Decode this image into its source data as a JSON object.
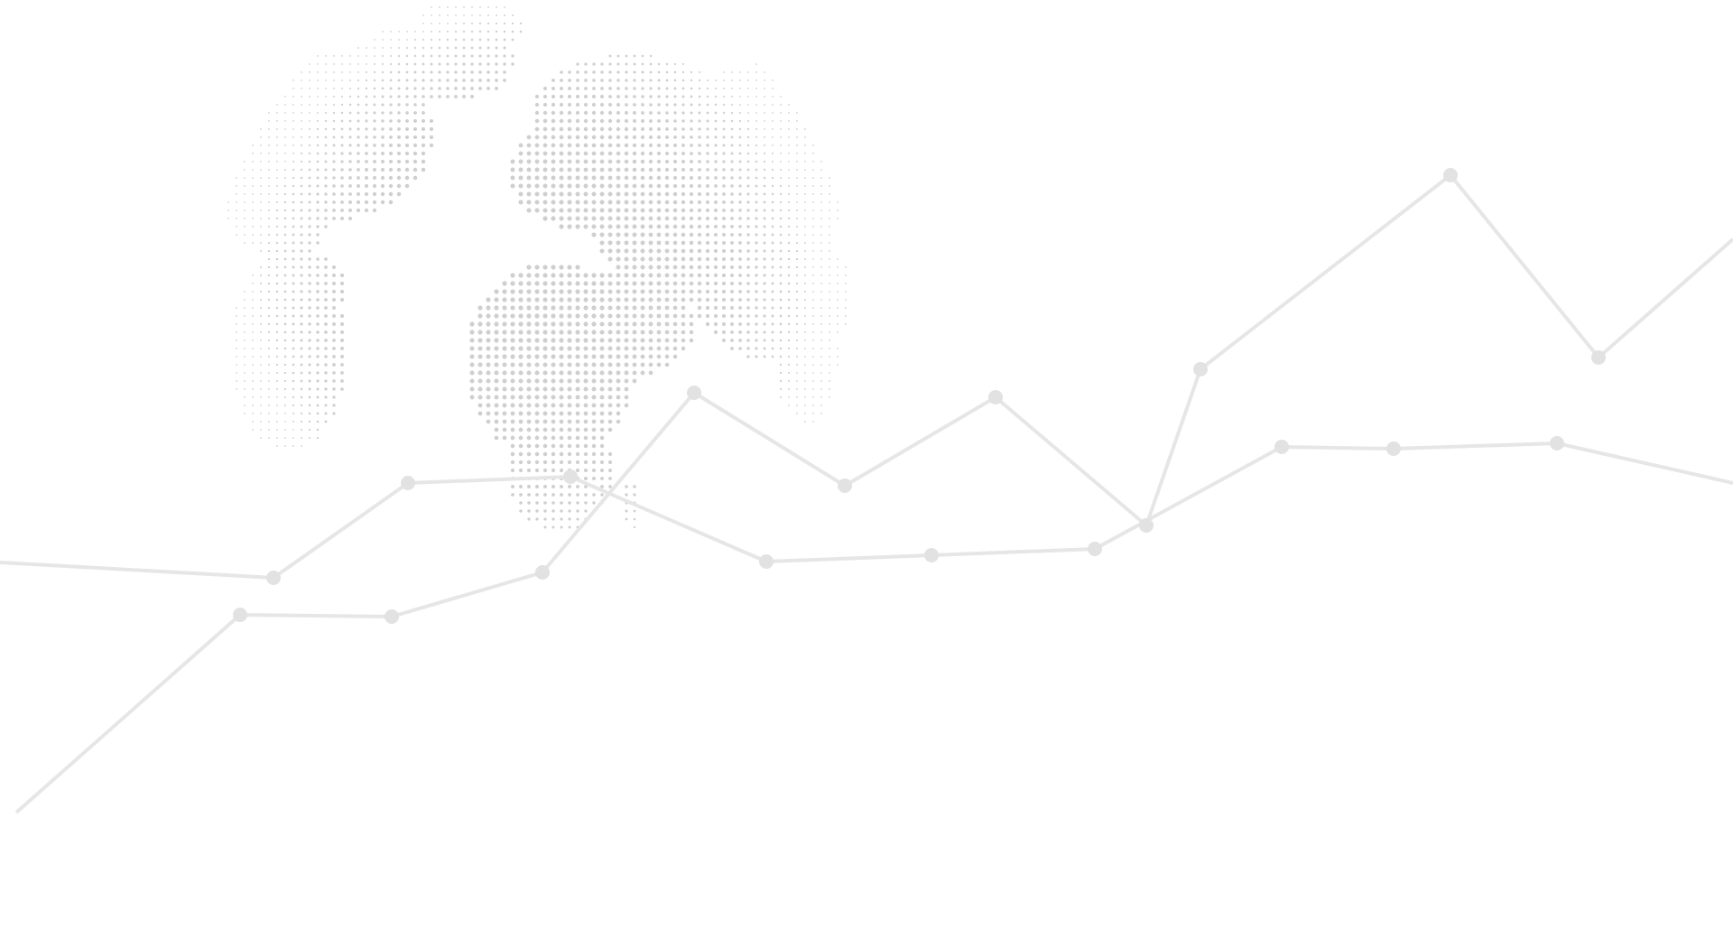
{
  "background": {
    "color": "#ffffff",
    "dot_color": "#cfcfcf",
    "line_color": "#e6e6e6",
    "point_color": "#e2e2e2"
  },
  "decorations": {
    "globe": "dotted-globe-illustration",
    "lines": [
      "polyline-back",
      "polyline-front"
    ]
  }
}
